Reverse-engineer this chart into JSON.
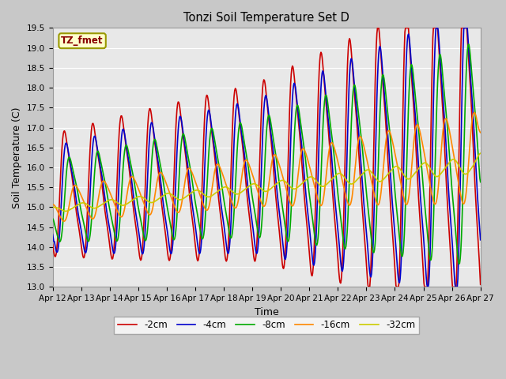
{
  "title": "Tonzi Soil Temperature Set D",
  "xlabel": "Time",
  "ylabel": "Soil Temperature (C)",
  "legend_label": "TZ_fmet",
  "ylim": [
    13.0,
    19.5
  ],
  "yticks": [
    13.0,
    13.5,
    14.0,
    14.5,
    15.0,
    15.5,
    16.0,
    16.5,
    17.0,
    17.5,
    18.0,
    18.5,
    19.0,
    19.5
  ],
  "xtick_labels": [
    "Apr 12",
    "Apr 13",
    "Apr 14",
    "Apr 15",
    "Apr 16",
    "Apr 17",
    "Apr 18",
    "Apr 19",
    "Apr 20",
    "Apr 21",
    "Apr 22",
    "Apr 23",
    "Apr 24",
    "Apr 25",
    "Apr 26",
    "Apr 27"
  ],
  "colors": {
    "-2cm": "#cc0000",
    "-4cm": "#0000cc",
    "-8cm": "#00aa00",
    "-16cm": "#ff8800",
    "-32cm": "#cccc00"
  },
  "lw": 1.2,
  "fig_bg": "#c8c8c8",
  "ax_bg": "#e8e8e8",
  "legend_box_facecolor": "#ffffcc",
  "legend_box_edgecolor": "#999900",
  "legend_text_color": "#880000",
  "grid_color": "#ffffff"
}
